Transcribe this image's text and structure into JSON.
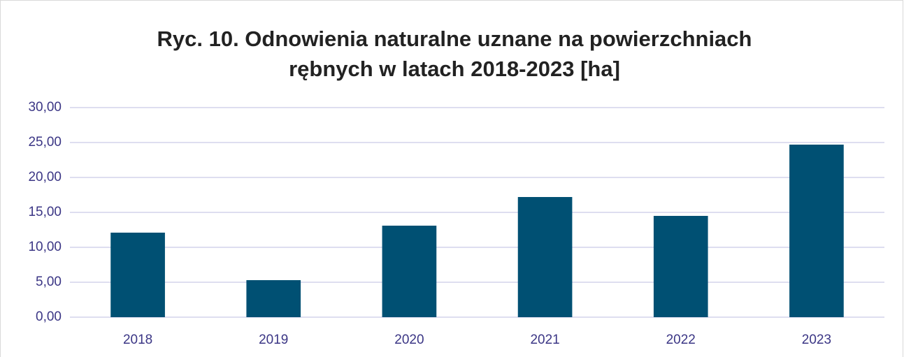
{
  "chart_data": {
    "type": "bar",
    "title": [
      "Ryc. 10. Odnowienia naturalne uznane na powierzchniach",
      "rębnych w latach 2018-2023 [ha]"
    ],
    "categories": [
      "2018",
      "2019",
      "2020",
      "2021",
      "2022",
      "2023"
    ],
    "values": [
      12.1,
      5.3,
      13.1,
      17.2,
      14.5,
      24.7
    ],
    "color": "#005073",
    "ylim": [
      0,
      30
    ],
    "yticks": [
      {
        "value": 0,
        "label": "0,00"
      },
      {
        "value": 5,
        "label": "5,00"
      },
      {
        "value": 10,
        "label": "10,00"
      },
      {
        "value": 15,
        "label": "15,00"
      },
      {
        "value": 20,
        "label": "20,00"
      },
      {
        "value": 25,
        "label": "25,00"
      },
      {
        "value": 30,
        "label": "30,00"
      }
    ],
    "grid": true
  }
}
